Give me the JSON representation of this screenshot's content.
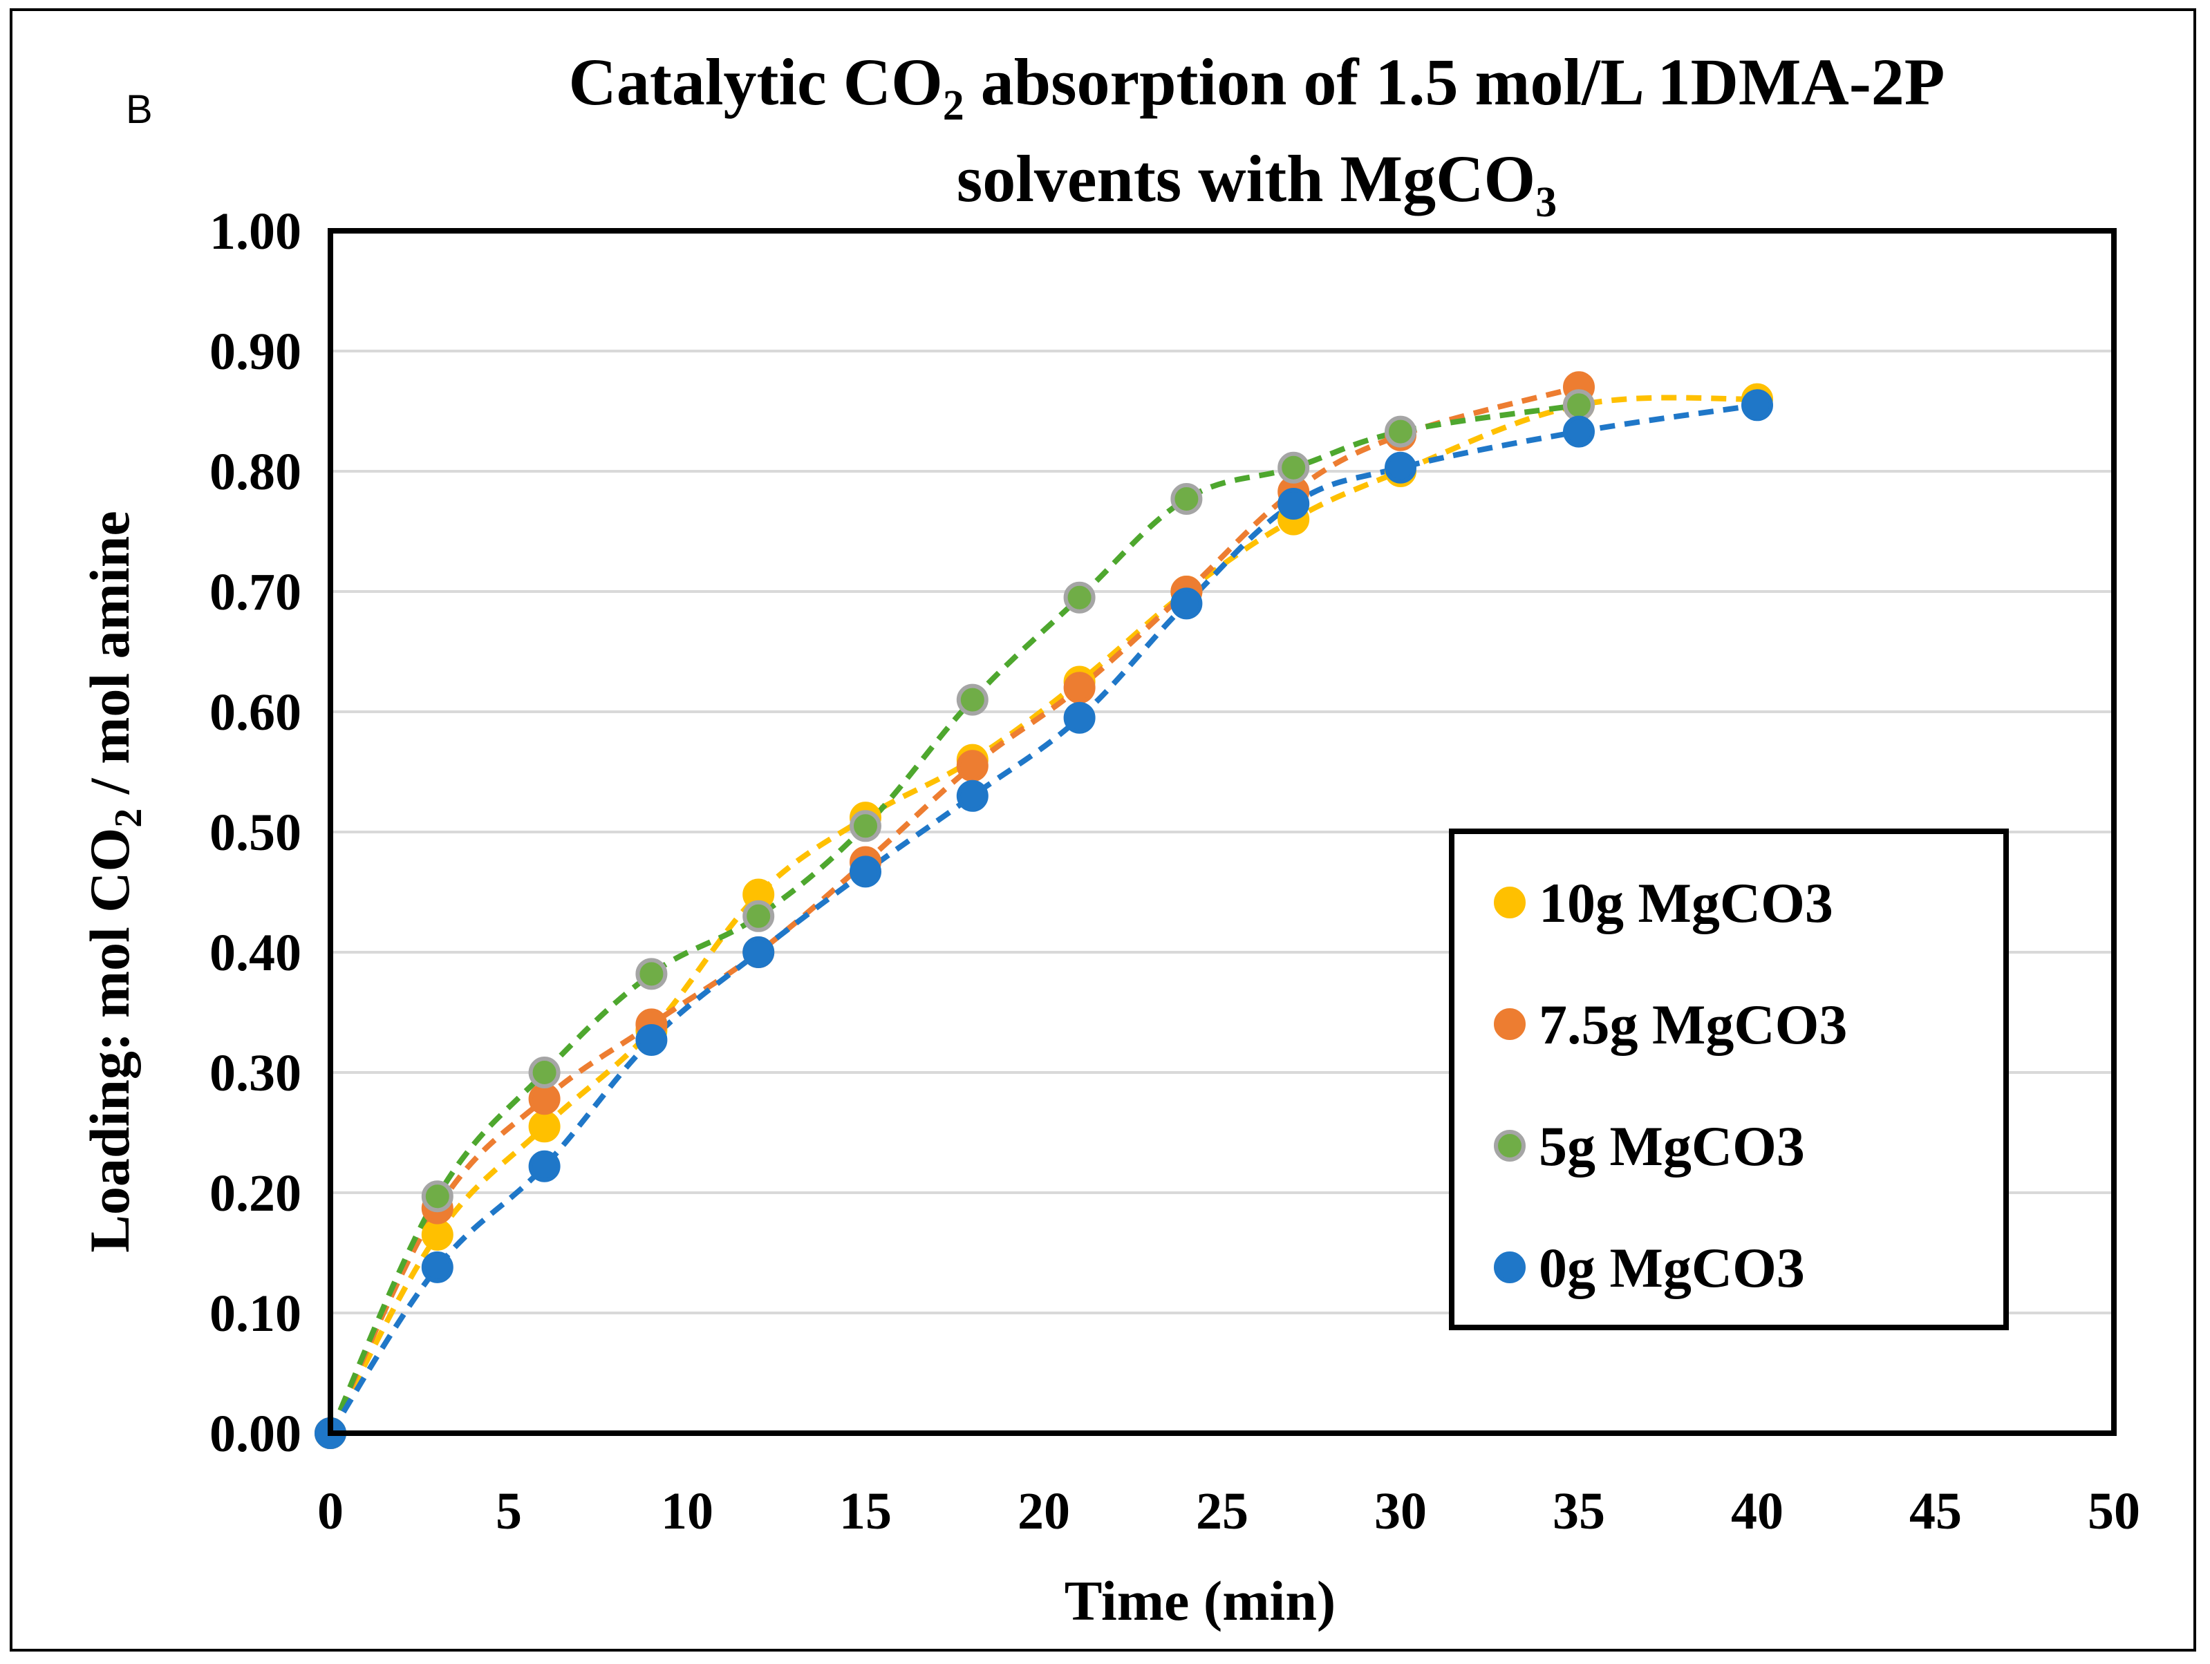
{
  "panel_label": "B",
  "chart_data": {
    "type": "scatter",
    "title_line1_pre": "Catalytic CO",
    "title_line1_sub": "2",
    "title_line1_post": " absorption of 1.5 mol/L 1DMA-2P",
    "title_line2_pre": "solvents with MgCO",
    "title_line2_sub": "3",
    "xlabel": "Time (min)",
    "ylabel_pre": "Loading: mol CO",
    "ylabel_sub": "2",
    "ylabel_post": " / mol amine",
    "xlim": [
      0,
      50
    ],
    "ylim": [
      0,
      1.0
    ],
    "xticks": [
      "0",
      "5",
      "10",
      "15",
      "20",
      "25",
      "30",
      "35",
      "40",
      "45",
      "50"
    ],
    "yticks": [
      "0.00",
      "0.10",
      "0.20",
      "0.30",
      "0.40",
      "0.50",
      "0.60",
      "0.70",
      "0.80",
      "0.90",
      "1.00"
    ],
    "grid": true,
    "legend_position": "center-right",
    "series": [
      {
        "name": "10g MgCO3",
        "color": "#FFC000",
        "edge": "#FFC000",
        "x": [
          0,
          3,
          6,
          9,
          12,
          15,
          18,
          21,
          24,
          27,
          30,
          35,
          40
        ],
        "y": [
          0.0,
          0.165,
          0.255,
          0.335,
          0.448,
          0.512,
          0.56,
          0.625,
          0.7,
          0.76,
          0.8,
          0.855,
          0.86
        ]
      },
      {
        "name": "7.5g MgCO3",
        "color": "#ED7D31",
        "edge": "#ED7D31",
        "x": [
          0,
          3,
          6,
          9,
          12,
          15,
          18,
          21,
          24,
          27,
          30,
          35
        ],
        "y": [
          0.0,
          0.187,
          0.278,
          0.34,
          0.4,
          0.475,
          0.555,
          0.62,
          0.7,
          0.783,
          0.83,
          0.87
        ]
      },
      {
        "name": "5g MgCO3",
        "color": "#70AD47",
        "edge": "#A5A5A5",
        "line_color": "#4EA72E",
        "x": [
          0,
          3,
          6,
          9,
          12,
          15,
          18,
          21,
          24,
          27,
          30,
          35
        ],
        "y": [
          0.0,
          0.197,
          0.3,
          0.382,
          0.43,
          0.505,
          0.61,
          0.695,
          0.777,
          0.803,
          0.833,
          0.855
        ]
      },
      {
        "name": "0g MgCO3",
        "color": "#1F77C8",
        "edge": "#1F77C8",
        "x": [
          0,
          3,
          6,
          9,
          12,
          15,
          18,
          21,
          24,
          27,
          30,
          35,
          40
        ],
        "y": [
          0.0,
          0.138,
          0.222,
          0.327,
          0.4,
          0.467,
          0.53,
          0.595,
          0.69,
          0.773,
          0.803,
          0.833,
          0.855
        ]
      }
    ]
  }
}
